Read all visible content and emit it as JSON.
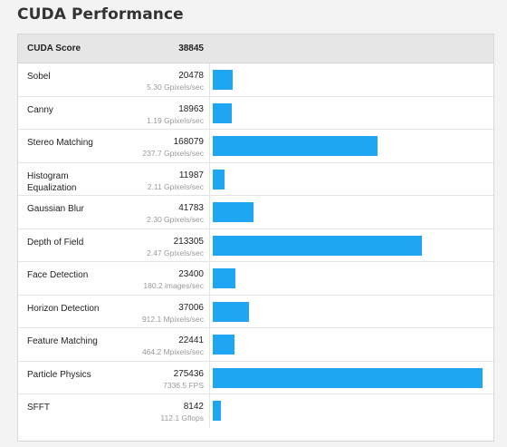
{
  "page": {
    "title": "CUDA Performance"
  },
  "summary": {
    "label": "CUDA Score",
    "score": "38845"
  },
  "colors": {
    "bar": "#1ea6f3"
  },
  "max_score": 275436,
  "rows": [
    {
      "name": "Sobel",
      "score": "20478",
      "score_value": 20478,
      "rate": "5.30 Gpixels/sec"
    },
    {
      "name": "Canny",
      "score": "18963",
      "score_value": 18963,
      "rate": "1.19 Gpixels/sec"
    },
    {
      "name": "Stereo Matching",
      "score": "168079",
      "score_value": 168079,
      "rate": "237.7 Gpixels/sec"
    },
    {
      "name": "Histogram Equalization",
      "score": "11987",
      "score_value": 11987,
      "rate": "2.11 Gpixels/sec"
    },
    {
      "name": "Gaussian Blur",
      "score": "41783",
      "score_value": 41783,
      "rate": "2.30 Gpixels/sec"
    },
    {
      "name": "Depth of Field",
      "score": "213305",
      "score_value": 213305,
      "rate": "2.47 Gpixels/sec"
    },
    {
      "name": "Face Detection",
      "score": "23400",
      "score_value": 23400,
      "rate": "180.2 images/sec"
    },
    {
      "name": "Horizon Detection",
      "score": "37006",
      "score_value": 37006,
      "rate": "912.1 Mpixels/sec"
    },
    {
      "name": "Feature Matching",
      "score": "22441",
      "score_value": 22441,
      "rate": "464.2 Mpixels/sec"
    },
    {
      "name": "Particle Physics",
      "score": "275436",
      "score_value": 275436,
      "rate": "7336.5 FPS"
    },
    {
      "name": "SFFT",
      "score": "8142",
      "score_value": 8142,
      "rate": "112.1 Gflops"
    }
  ]
}
